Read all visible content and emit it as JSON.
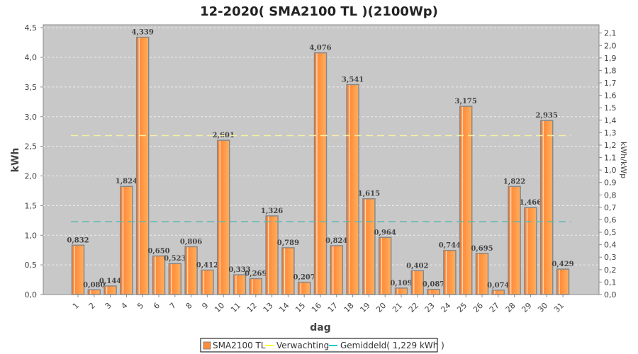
{
  "chart_data": {
    "type": "bar",
    "title": "12-2020( SMA2100 TL )(2100Wp)",
    "xlabel": "dag",
    "ylabel": "kWh",
    "y2label": "kWh/kWp",
    "ylim": [
      0,
      4.5
    ],
    "y2lim": [
      0,
      2.1
    ],
    "yticks": [
      "0,0",
      "0,5",
      "1,0",
      "1,5",
      "2,0",
      "2,5",
      "3,0",
      "3,5",
      "4,0",
      "4,5"
    ],
    "y2ticks": [
      "0,0",
      "0,1",
      "0,2",
      "0,3",
      "0,4",
      "0,5",
      "0,6",
      "0,7",
      "0,8",
      "0,9",
      "1,0",
      "1,1",
      "1,2",
      "1,3",
      "1,4",
      "1,5",
      "1,6",
      "1,7",
      "1,8",
      "1,9",
      "2,0",
      "2,1"
    ],
    "categories": [
      "1",
      "2",
      "3",
      "4",
      "5",
      "6",
      "7",
      "8",
      "9",
      "10",
      "11",
      "12",
      "13",
      "14",
      "15",
      "16",
      "17",
      "18",
      "19",
      "20",
      "21",
      "22",
      "23",
      "24",
      "25",
      "26",
      "27",
      "28",
      "29",
      "30",
      "31"
    ],
    "series": [
      {
        "name": "SMA2100 TL",
        "color": "#ff8c3a",
        "values": [
          0.832,
          0.08,
          0.144,
          1.824,
          4.339,
          0.65,
          0.523,
          0.806,
          0.412,
          2.601,
          0.333,
          0.269,
          1.326,
          0.789,
          0.207,
          4.076,
          0.824,
          3.541,
          1.615,
          0.964,
          0.109,
          0.402,
          0.087,
          0.744,
          3.175,
          0.695,
          0.074,
          1.822,
          1.466,
          2.935,
          0.429
        ],
        "labels": [
          "0,832",
          "0,080",
          "0,144",
          "1,824",
          "4,339",
          "0,650",
          "0,523",
          "0,806",
          "0,412",
          "2,601",
          "0,333",
          "0,269",
          "1,326",
          "0,789",
          "0,207",
          "4,076",
          "0,824",
          "3,541",
          "1,615",
          "0,964",
          "0,109",
          "0,402",
          "0,087",
          "0,744",
          "3,175",
          "0,695",
          "0,074",
          "1,822",
          "1,466",
          "2,935",
          "0,429"
        ]
      }
    ],
    "lines": [
      {
        "name": "Verwachting",
        "value": 2.68,
        "color": "#ffff66"
      },
      {
        "name": "Gemiddeld( 1,229 kWh )",
        "value": 1.229,
        "color": "#33cccc"
      }
    ],
    "grid": true,
    "legend": "bottom"
  }
}
